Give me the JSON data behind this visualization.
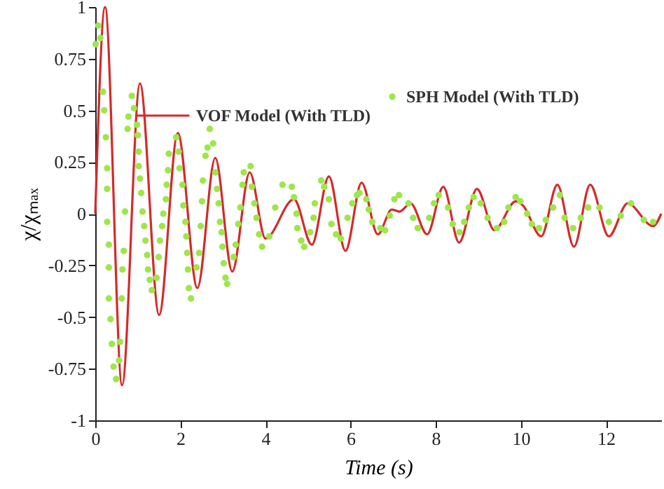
{
  "chart_data": {
    "type": "line",
    "xlabel": "Time (s)",
    "ylabel": "χ/χₘₐₓ",
    "xlim": [
      0,
      13.3
    ],
    "ylim": [
      -1,
      1
    ],
    "xticks": [
      0,
      2,
      4,
      6,
      8,
      10,
      12
    ],
    "yticks": [
      -1,
      -0.75,
      -0.5,
      -0.25,
      0,
      0.25,
      0.5,
      0.75,
      1
    ],
    "grid": false,
    "legend": "top right",
    "series": [
      {
        "name": "VOF Model (With TLD)",
        "type": "line",
        "color": "#d42a2a",
        "marker": "none",
        "line_style": "solid",
        "x": [
          0,
          0.23,
          0.63,
          1.05,
          1.5,
          1.94,
          2.4,
          2.82,
          3.22,
          3.63,
          4.0,
          4.67,
          5.09,
          5.49,
          5.88,
          6.26,
          6.64,
          6.97,
          7.15,
          7.41,
          7.8,
          8.18,
          8.55,
          8.97,
          9.38,
          9.88,
          10.05,
          10.48,
          10.86,
          11.25,
          11.63,
          12.07,
          12.51,
          13.11,
          13.3
        ],
        "values": [
          0,
          1.0,
          -0.83,
          0.63,
          -0.49,
          0.39,
          -0.36,
          0.27,
          -0.28,
          0.2,
          -0.12,
          0.07,
          -0.15,
          0.18,
          -0.18,
          0.15,
          -0.1,
          0.02,
          0.01,
          0.05,
          -0.1,
          0.13,
          -0.14,
          0.12,
          -0.08,
          0.06,
          0.04,
          -0.11,
          0.14,
          -0.16,
          0.14,
          -0.11,
          0.05,
          -0.06,
          0
        ]
      },
      {
        "name": "SPH Model (With TLD)",
        "type": "scatter",
        "color": "#9ee64c",
        "marker": "circle",
        "x": [
          0.01,
          0.07,
          0.12,
          0.18,
          0.21,
          0.25,
          0.28,
          0.28,
          0.28,
          0.32,
          0.32,
          0.32,
          0.36,
          0.39,
          0.43,
          0.49,
          0.56,
          0.58,
          0.62,
          0.64,
          0.67,
          0.7,
          0.76,
          0.78,
          0.86,
          0.91,
          0.98,
          1.0,
          1.02,
          1.02,
          1.05,
          1.08,
          1.11,
          1.15,
          1.18,
          1.22,
          1.24,
          1.28,
          1.33,
          1.44,
          1.49,
          1.52,
          1.57,
          1.6,
          1.66,
          1.68,
          1.71,
          1.73,
          1.9,
          1.96,
          1.98,
          2.05,
          2.07,
          2.12,
          2.14,
          2.16,
          2.18,
          2.2,
          2.25,
          2.38,
          2.44,
          2.48,
          2.51,
          2.53,
          2.59,
          2.64,
          2.69,
          2.77,
          2.82,
          2.86,
          2.9,
          2.93,
          2.97,
          2.99,
          3.02,
          3.06,
          3.1,
          3.25,
          3.3,
          3.36,
          3.41,
          3.46,
          3.49,
          3.65,
          3.68,
          3.74,
          3.79,
          3.85,
          3.92,
          4.09,
          4.23,
          4.4,
          4.62,
          4.67,
          4.73,
          4.75,
          4.84,
          4.91,
          5.05,
          5.13,
          5.16,
          5.31,
          5.38,
          5.49,
          5.55,
          5.66,
          5.77,
          5.93,
          6.04,
          6.15,
          6.21,
          6.37,
          6.43,
          6.51,
          6.7,
          6.81,
          6.92,
          7.03,
          7.14,
          7.36,
          7.47,
          7.58,
          7.85,
          7.96,
          8.07,
          8.29,
          8.4,
          8.56,
          8.67,
          8.78,
          8.89,
          9.06,
          9.22,
          9.44,
          9.61,
          9.71,
          9.88,
          9.99,
          10.15,
          10.26,
          10.43,
          10.59,
          10.76,
          10.92,
          11.03,
          11.23,
          11.41,
          11.58,
          11.85,
          12.07,
          12.35,
          12.59,
          12.89,
          13.11
        ],
        "values": [
          0.82,
          0.91,
          0.85,
          0.59,
          0.5,
          0.37,
          0.22,
          0.12,
          -0.04,
          -0.15,
          -0.26,
          -0.41,
          -0.51,
          -0.63,
          -0.74,
          -0.8,
          -0.71,
          -0.62,
          -0.41,
          -0.27,
          -0.18,
          0.01,
          0.41,
          0.47,
          0.57,
          0.51,
          0.43,
          0.38,
          0.3,
          0.23,
          0.17,
          0.1,
          0.01,
          -0.06,
          -0.13,
          -0.2,
          -0.27,
          -0.32,
          -0.37,
          -0.31,
          -0.21,
          -0.13,
          -0.06,
          0.0,
          0.07,
          0.14,
          0.21,
          0.29,
          0.37,
          0.3,
          0.22,
          0.14,
          0.04,
          -0.04,
          -0.11,
          -0.19,
          -0.27,
          -0.36,
          -0.41,
          -0.26,
          -0.19,
          -0.06,
          0.06,
          0.16,
          0.28,
          0.32,
          0.41,
          0.34,
          0.2,
          0.12,
          0.05,
          -0.04,
          -0.09,
          -0.16,
          -0.24,
          -0.31,
          -0.34,
          -0.21,
          -0.15,
          -0.05,
          0.03,
          0.14,
          0.2,
          0.23,
          0.13,
          0.05,
          -0.02,
          -0.1,
          -0.16,
          -0.11,
          0.03,
          0.14,
          0.13,
          0.08,
          0.0,
          -0.07,
          -0.13,
          -0.16,
          -0.09,
          -0.02,
          0.05,
          0.16,
          0.13,
          0.07,
          -0.05,
          -0.1,
          -0.12,
          -0.02,
          0.05,
          0.09,
          0.1,
          0.07,
          0.02,
          -0.04,
          -0.07,
          -0.08,
          -0.01,
          0.07,
          0.09,
          0.05,
          -0.02,
          -0.07,
          -0.02,
          0.05,
          0.09,
          0.03,
          -0.05,
          -0.09,
          -0.04,
          0.03,
          0.08,
          0.05,
          -0.02,
          -0.07,
          -0.04,
          0.03,
          0.08,
          0.06,
          0.0,
          -0.05,
          -0.07,
          -0.03,
          0.03,
          0.09,
          -0.02,
          -0.07,
          -0.02,
          0.03,
          0.03,
          -0.04,
          -0.01,
          0.05,
          -0.03,
          -0.04
        ]
      }
    ]
  }
}
